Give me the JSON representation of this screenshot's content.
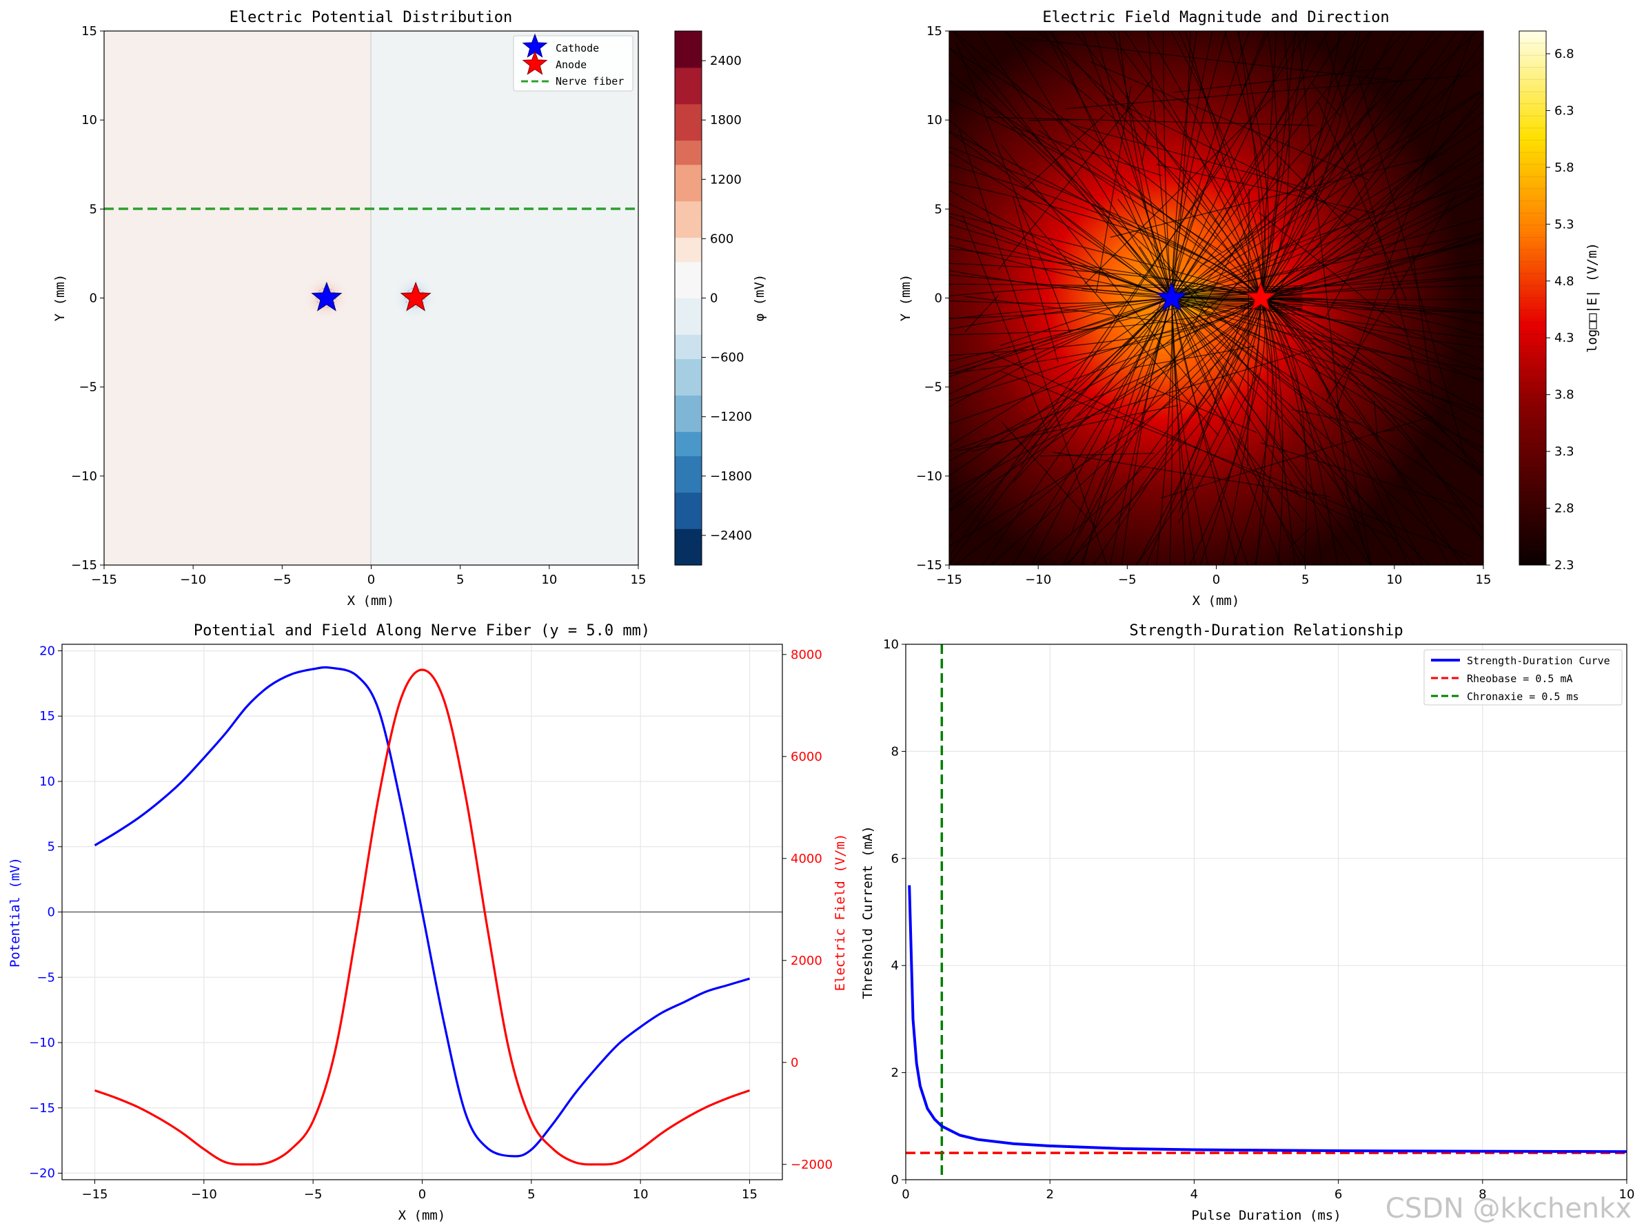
{
  "watermark": "CSDN @kkchenkx",
  "chart_data": [
    {
      "type": "heatmap",
      "title": "Electric Potential Distribution",
      "xlabel": "X (mm)",
      "ylabel": "Y (mm)",
      "xlim": [
        -15,
        15
      ],
      "ylim": [
        -15,
        15
      ],
      "xticks": [
        -15,
        -10,
        -5,
        0,
        5,
        10,
        15
      ],
      "yticks": [
        -15,
        -10,
        -5,
        0,
        5,
        10,
        15
      ],
      "colorbar": {
        "label": "φ (mV)",
        "range": [
          -2700,
          2700
        ],
        "ticks": [
          2400,
          1800,
          1200,
          600,
          0,
          -600,
          -1200,
          -1800,
          -2400
        ],
        "colormap": "RdBu_r"
      },
      "markers": [
        {
          "name": "Cathode",
          "x": -2.5,
          "y": 0,
          "color": "#0000ff",
          "symbol": "star"
        },
        {
          "name": "Anode",
          "x": 2.5,
          "y": 0,
          "color": "#ff0000",
          "symbol": "star"
        }
      ],
      "nerve_fiber_y": 5,
      "legend": [
        {
          "label": "Cathode",
          "color": "#0000ff",
          "symbol": "star"
        },
        {
          "label": "Anode",
          "color": "#ff0000",
          "symbol": "star"
        },
        {
          "label": "Nerve fiber",
          "color": "#2ca02c",
          "symbol": "dashed-line"
        }
      ],
      "legend_position": "top-right"
    },
    {
      "type": "heatmap",
      "title": "Electric Field Magnitude and Direction",
      "xlabel": "X (mm)",
      "ylabel": "Y (mm)",
      "xlim": [
        -15,
        15
      ],
      "ylim": [
        -15,
        15
      ],
      "xticks": [
        -15,
        -10,
        -5,
        0,
        5,
        10,
        15
      ],
      "yticks": [
        -15,
        -10,
        -5,
        0,
        5,
        10,
        15
      ],
      "colorbar": {
        "label": "log□□|E| (V/m)",
        "range": [
          2.3,
          7.0
        ],
        "ticks": [
          6.8,
          6.3,
          5.8,
          5.3,
          4.8,
          4.3,
          3.8,
          3.3,
          2.8,
          2.3
        ],
        "colormap": "hot"
      },
      "markers": [
        {
          "name": "Cathode",
          "x": -2.5,
          "y": 0,
          "color": "#0000ff",
          "symbol": "star"
        },
        {
          "name": "Anode",
          "x": 2.5,
          "y": 0,
          "color": "#ff0000",
          "symbol": "star"
        }
      ],
      "overlay": "streamlines"
    },
    {
      "type": "line",
      "title": "Potential and Field Along Nerve Fiber (y = 5.0 mm)",
      "xlabel": "X (mm)",
      "ylabel": "Potential (mV)",
      "ylabel_right": "Electric Field (V/m)",
      "xlim": [
        -16.5,
        16.5
      ],
      "ylim": [
        -20.5,
        20.5
      ],
      "ylim_right": [
        -2300,
        8200
      ],
      "xticks": [
        -15,
        -10,
        -5,
        0,
        5,
        10,
        15
      ],
      "yticks": [
        -20,
        -15,
        -10,
        -5,
        0,
        5,
        10,
        15,
        20
      ],
      "yticks_right": [
        -2000,
        0,
        2000,
        4000,
        6000,
        8000
      ],
      "grid": true,
      "series": [
        {
          "name": "Potential",
          "axis": "left",
          "color": "#0000ff",
          "x": [
            -15,
            -14,
            -13,
            -12,
            -11,
            -10,
            -9,
            -8,
            -7,
            -6,
            -5,
            -4.2,
            -3,
            -2,
            -1,
            0,
            1,
            2,
            3,
            4.2,
            5,
            6,
            7,
            8,
            9,
            10,
            11,
            12,
            13,
            14,
            15
          ],
          "y": [
            5.1,
            6.1,
            7.2,
            8.5,
            10.0,
            11.8,
            13.7,
            15.8,
            17.3,
            18.2,
            18.6,
            18.7,
            18.1,
            15.5,
            8.5,
            0,
            -8.5,
            -15.5,
            -18.1,
            -18.7,
            -18.2,
            -16.2,
            -13.9,
            -11.9,
            -10.1,
            -8.8,
            -7.7,
            -6.9,
            -6.1,
            -5.6,
            -5.1
          ]
        },
        {
          "name": "Electric Field",
          "axis": "right",
          "color": "#ff0000",
          "x": [
            -15,
            -14,
            -13,
            -12,
            -11,
            -10,
            -9,
            -8,
            -7,
            -6,
            -5,
            -4,
            -3,
            -2,
            -1,
            0,
            1,
            2,
            3,
            4,
            5,
            6,
            7,
            8,
            9,
            10,
            11,
            12,
            13,
            14,
            15
          ],
          "y": [
            -550,
            -700,
            -880,
            -1110,
            -1380,
            -1700,
            -1960,
            -2000,
            -1960,
            -1700,
            -1150,
            200,
            2600,
            5200,
            7100,
            7700,
            7100,
            5200,
            2600,
            200,
            -1150,
            -1700,
            -1960,
            -2000,
            -1960,
            -1700,
            -1380,
            -1110,
            -880,
            -700,
            -550
          ]
        }
      ]
    },
    {
      "type": "line",
      "title": "Strength-Duration Relationship",
      "xlabel": "Pulse Duration (ms)",
      "ylabel": "Threshold Current (mA)",
      "xlim": [
        0,
        10
      ],
      "ylim": [
        0,
        10
      ],
      "xticks": [
        0,
        2,
        4,
        6,
        8,
        10
      ],
      "yticks": [
        0,
        2,
        4,
        6,
        8,
        10
      ],
      "grid": true,
      "legend_position": "top-right",
      "series": [
        {
          "name": "Strength-Duration Curve",
          "color": "#0000ff",
          "style": "solid",
          "x": [
            0.05,
            0.1,
            0.15,
            0.2,
            0.3,
            0.4,
            0.5,
            0.75,
            1,
            1.5,
            2,
            3,
            4,
            5,
            6,
            7,
            8,
            9,
            10
          ],
          "y": [
            5.5,
            3.0,
            2.17,
            1.75,
            1.33,
            1.13,
            1.0,
            0.83,
            0.75,
            0.67,
            0.63,
            0.58,
            0.56,
            0.55,
            0.54,
            0.536,
            0.531,
            0.528,
            0.525
          ]
        },
        {
          "name": "Rheobase = 0.5 mA",
          "color": "#ff0000",
          "style": "dashed",
          "y": 0.5
        },
        {
          "name": "Chronaxie = 0.5 ms",
          "color": "#008000",
          "style": "dashed",
          "x": 0.5
        }
      ]
    }
  ]
}
